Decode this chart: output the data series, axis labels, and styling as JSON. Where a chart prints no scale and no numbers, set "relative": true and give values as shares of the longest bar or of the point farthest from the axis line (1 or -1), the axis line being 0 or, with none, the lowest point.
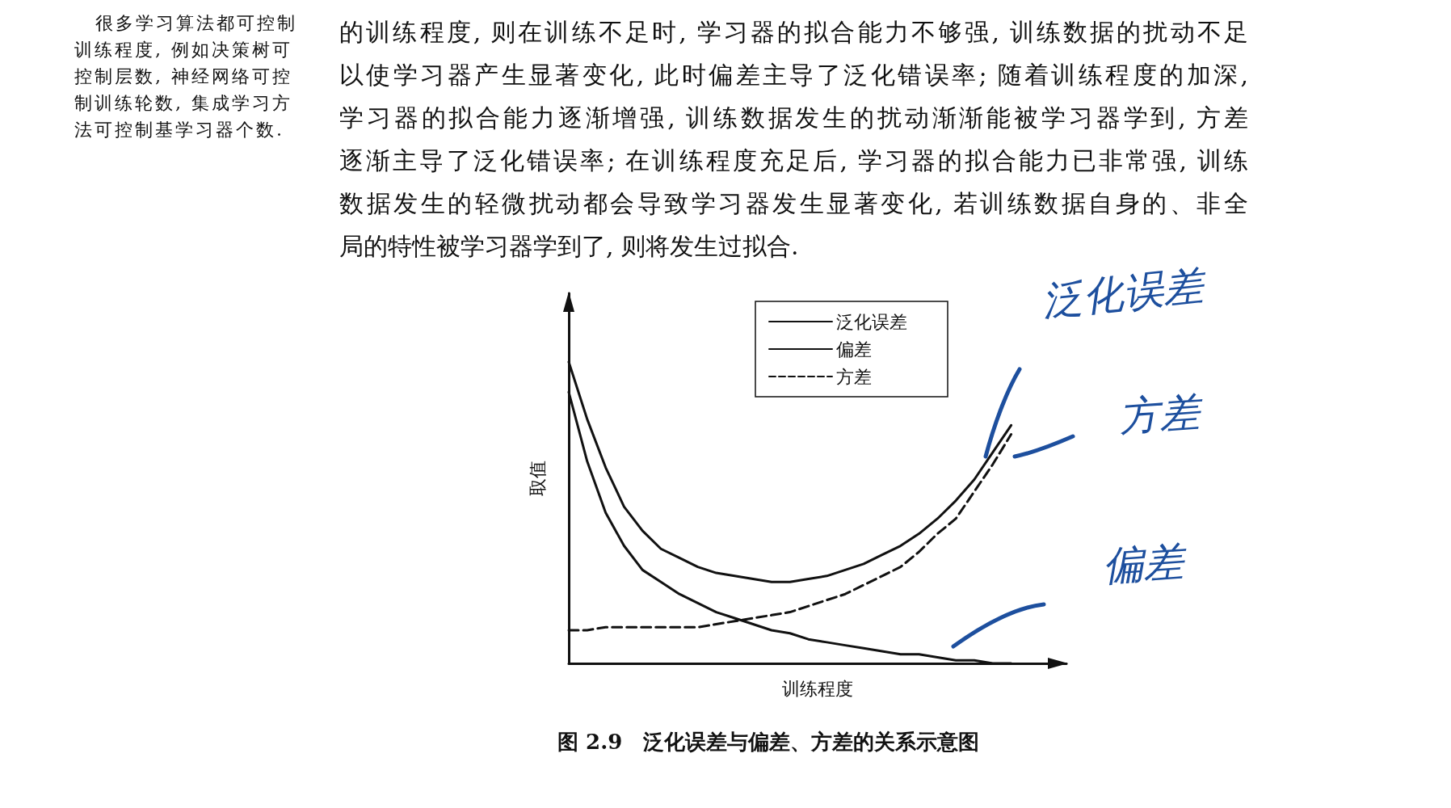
{
  "chart_data": {
    "type": "line",
    "relative": true,
    "title": "图 2.9　泛化误差与偏差、方差的关系示意图",
    "xlabel": "训练程度",
    "ylabel": "取值",
    "categories": [
      null,
      null,
      null,
      null,
      null,
      null,
      null,
      null,
      null,
      null,
      null,
      null,
      null,
      null,
      null,
      null,
      null,
      null,
      null,
      null,
      null,
      null,
      null,
      null,
      null
    ],
    "series": [
      {
        "name": "泛化误差",
        "color": "#111111",
        "line_style": "solid",
        "values": [
          1,
          0.81,
          0.65,
          0.52,
          0.44,
          0.38,
          0.35,
          0.32,
          0.3,
          0.29,
          0.28,
          0.27,
          0.27,
          0.28,
          0.29,
          0.31,
          0.33,
          0.36,
          0.39,
          0.43,
          0.48,
          0.54,
          0.61,
          0.7,
          0.79
        ]
      },
      {
        "name": "偏差",
        "color": "#111111",
        "line_style": "solid",
        "values": [
          0.9,
          0.67,
          0.5,
          0.39,
          0.31,
          0.27,
          0.23,
          0.2,
          0.17,
          0.15,
          0.13,
          0.11,
          0.1,
          0.08,
          0.07,
          0.06,
          0.05,
          0.04,
          0.03,
          0.03,
          0.02,
          0.01,
          0.01,
          0,
          0
        ]
      },
      {
        "name": "方差",
        "color": "#111111",
        "line_style": "dashed",
        "values": [
          0.11,
          0.11,
          0.12,
          0.12,
          0.12,
          0.12,
          0.12,
          0.12,
          0.13,
          0.14,
          0.15,
          0.16,
          0.17,
          0.19,
          0.21,
          0.23,
          0.26,
          0.29,
          0.32,
          0.37,
          0.43,
          0.48,
          0.57,
          0.66,
          0.76
        ]
      }
    ],
    "legend": "top right",
    "grid": false,
    "marker": "none",
    "annotations": [
      "很多学习算法都可控制",
      "训练程度, 例如决策树可",
      "控制层数, 神经网络可控",
      "制训练轮数, 集成学习方",
      "法可控制基学习器个数.",
      "的训练程度, 则在训练不足时, 学习器的拟合能力不够强, 训练数据的扰动不足",
      "以使学习器产生显著变化, 此时偏差主导了泛化错误率; 随着训练程度的加深,",
      "学习器的拟合能力逐渐增强, 训练数据发生的扰动渐渐能被学习器学到, 方差",
      "逐渐主导了泛化错误率; 在训练程度充足后, 学习器的拟合能力已非常强, 训练",
      "数据发生的轻微扰动都会导致学习器发生显著变化, 若训练数据自身的、非全",
      "局的特性被学习器学到了, 则将发生过拟合.",
      "泛化误差",
      "方差",
      "偏差"
    ]
  }
}
